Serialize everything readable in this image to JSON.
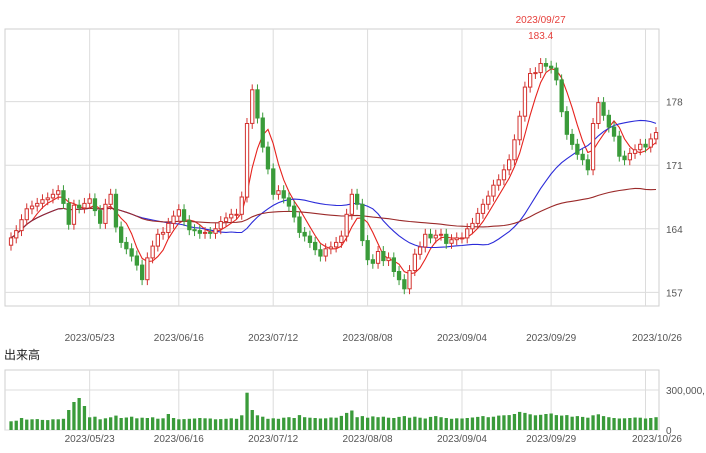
{
  "chart_data": [
    {
      "type": "candlestick",
      "title": "",
      "xlabel": "",
      "ylabel": "",
      "ylim": [
        155.5,
        186
      ],
      "y_ticks": [
        178,
        171,
        164,
        157
      ],
      "x_tick_labels": [
        "2023/05/23",
        "2023/06/16",
        "2023/07/12",
        "2023/08/08",
        "2023/09/04",
        "2023/09/29",
        "2023/10/26"
      ],
      "x_tick_index": [
        15,
        32,
        50,
        68,
        86,
        103,
        121
      ],
      "grid": true,
      "peak_annotation": {
        "date": "2023/09/27",
        "value": "183.4",
        "index": 101
      },
      "colors": {
        "up": "#d3322f",
        "down": "#3a9b3a",
        "ma_short": "#e6231e",
        "ma_mid": "#2b2bd9",
        "ma_long": "#9b2a2a",
        "grid": "#dcdcdc"
      },
      "closes": [
        163.0,
        163.8,
        165.0,
        166.2,
        166.5,
        166.8,
        167.2,
        167.4,
        167.8,
        168.2,
        166.8,
        164.5,
        166.6,
        166.3,
        166.8,
        167.3,
        166.0,
        164.6,
        166.7,
        167.8,
        164.2,
        162.5,
        161.8,
        161.0,
        160.0,
        158.4,
        160.8,
        162.1,
        163.4,
        163.6,
        164.6,
        165.4,
        166.1,
        164.9,
        163.9,
        163.8,
        163.5,
        163.6,
        163.5,
        164.0,
        164.8,
        165.2,
        165.6,
        165.6,
        167.5,
        175.6,
        179.3,
        176.2,
        173.0,
        170.6,
        167.8,
        168.2,
        167.4,
        166.5,
        165.3,
        163.6,
        163.2,
        162.5,
        161.7,
        161.0,
        161.8,
        162.0,
        162.5,
        163.2,
        165.6,
        167.8,
        166.7,
        162.7,
        160.6,
        160.2,
        161.5,
        160.5,
        160.8,
        159.3,
        158.4,
        157.4,
        159.4,
        161.2,
        162.0,
        163.4,
        163.0,
        163.3,
        163.4,
        162.4,
        162.8,
        163.0,
        163.0,
        164.0,
        164.6,
        165.7,
        166.7,
        167.6,
        168.8,
        169.4,
        170.5,
        171.6,
        173.8,
        176.4,
        179.6,
        181.1,
        181.2,
        182.2,
        181.9,
        181.7,
        180.4,
        176.9,
        174.4,
        173.3,
        172.2,
        171.6,
        170.5,
        175.6,
        177.9,
        176.5,
        175.2,
        174.2,
        172.0,
        171.6,
        172.3,
        172.7,
        173.3,
        173.0,
        173.9,
        174.6
      ]
    },
    {
      "type": "bar",
      "title": "出来高",
      "ylim": [
        0,
        450000
      ],
      "y_tick_labels": [
        "300,000,",
        "0"
      ],
      "y_ticks": [
        300000,
        0
      ],
      "x_tick_labels": [
        "2023/05/23",
        "2023/06/16",
        "2023/07/12",
        "2023/08/08",
        "2023/09/04",
        "2023/09/29",
        "2023/10/26"
      ],
      "values": [
        65000,
        70000,
        90000,
        78000,
        80000,
        82000,
        76000,
        74000,
        80000,
        80000,
        84000,
        150000,
        210000,
        240000,
        180000,
        95000,
        100000,
        80000,
        88000,
        95000,
        108000,
        90000,
        94000,
        100000,
        88000,
        92000,
        90000,
        95000,
        85000,
        88000,
        120000,
        90000,
        80000,
        82000,
        84000,
        86000,
        90000,
        88000,
        86000,
        80000,
        82000,
        84000,
        88000,
        84000,
        110000,
        280000,
        150000,
        110000,
        100000,
        84000,
        88000,
        84000,
        92000,
        96000,
        90000,
        112000,
        96000,
        92000,
        90000,
        86000,
        88000,
        94000,
        92000,
        106000,
        128000,
        146000,
        96000,
        104000,
        92000,
        102000,
        96000,
        100000,
        92000,
        90000,
        98000,
        104000,
        92000,
        100000,
        92000,
        86000,
        98000,
        104000,
        96000,
        90000,
        84000,
        88000,
        86000,
        90000,
        94000,
        98000,
        104000,
        96000,
        100000,
        108000,
        110000,
        112000,
        120000,
        136000,
        128000,
        118000,
        110000,
        114000,
        120000,
        124000,
        112000,
        108000,
        112000,
        100000,
        104000,
        98000,
        92000,
        110000,
        118000,
        104000,
        96000,
        90000,
        86000,
        88000,
        90000,
        94000,
        92000,
        86000,
        90000,
        96000
      ]
    }
  ]
}
